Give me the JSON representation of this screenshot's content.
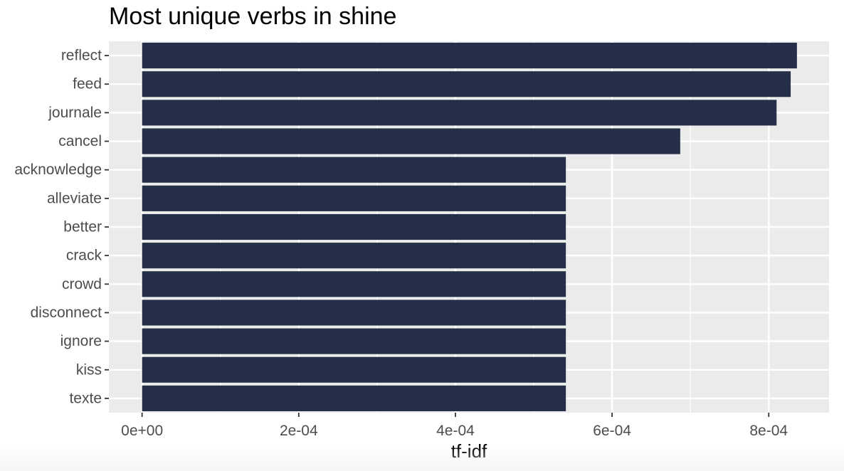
{
  "chart_data": {
    "type": "bar",
    "orientation": "horizontal",
    "title": "Most unique verbs in shine",
    "xlabel": "tf-idf",
    "ylabel": "",
    "categories": [
      "reflect",
      "feed",
      "journale",
      "cancel",
      "acknowledge",
      "alleviate",
      "better",
      "crack",
      "crowd",
      "disconnect",
      "ignore",
      "kiss",
      "texte"
    ],
    "values": [
      0.000836,
      0.000828,
      0.00081,
      0.000687,
      0.000541,
      0.000541,
      0.000541,
      0.000541,
      0.000541,
      0.000541,
      0.000541,
      0.000541,
      0.000541
    ],
    "xlim": [
      -4.24e-05,
      0.000877
    ],
    "xticks": [
      0,
      0.0002,
      0.0004,
      0.0006,
      0.0008
    ],
    "xtick_labels": [
      "0e+00",
      "2e-04",
      "4e-04",
      "6e-04",
      "8e-04"
    ],
    "grid": true,
    "legend": "none",
    "colors": {
      "bar": "#262f49",
      "panel": "#ebebeb",
      "gridline": "#ffffff",
      "tick_text": "#4d4d4d"
    }
  }
}
